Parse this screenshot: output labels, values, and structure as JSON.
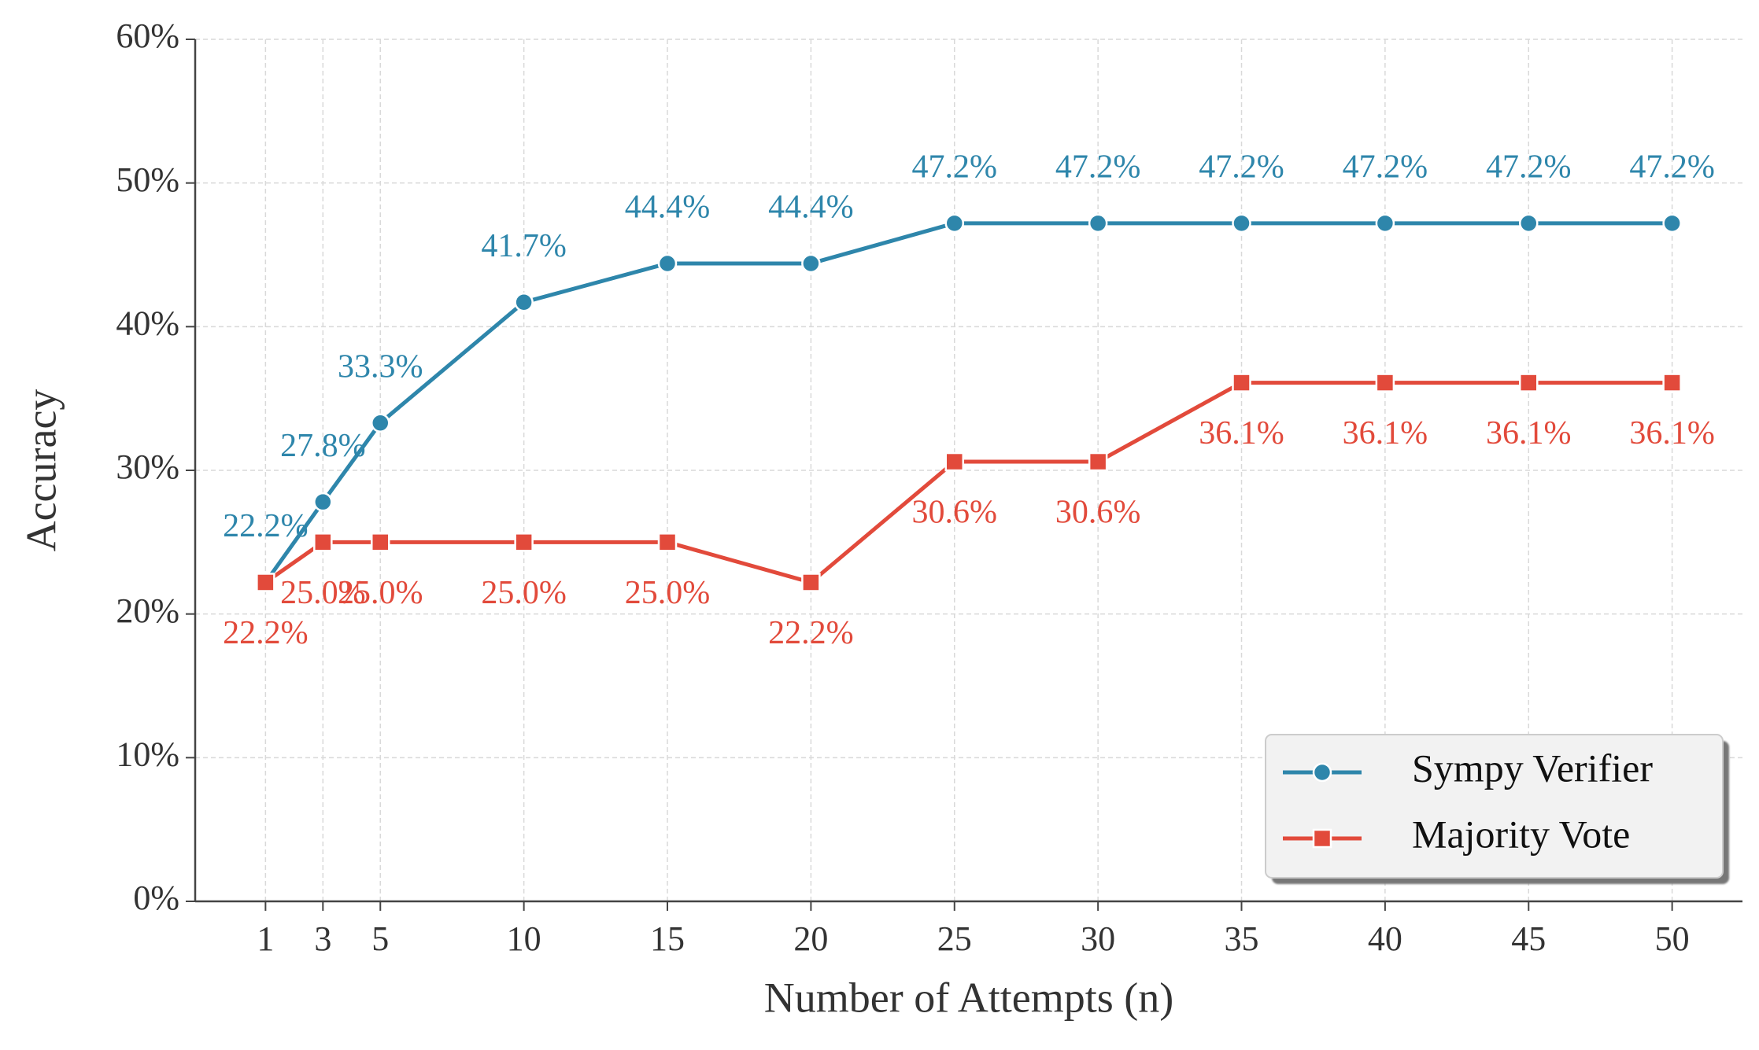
{
  "chart_data": {
    "type": "line",
    "x": [
      1,
      3,
      5,
      10,
      15,
      20,
      25,
      30,
      35,
      40,
      45,
      50
    ],
    "xlabel": "Number of Attempts (n)",
    "ylabel": "Accuracy",
    "xlim": [
      -1.45,
      52.45
    ],
    "xticks": [
      1,
      3,
      5,
      10,
      15,
      20,
      25,
      30,
      35,
      40,
      45,
      50
    ],
    "ylim": [
      0,
      60
    ],
    "yticks": [
      {
        "value": 0,
        "label": "0%"
      },
      {
        "value": 10,
        "label": "10%"
      },
      {
        "value": 20,
        "label": "20%"
      },
      {
        "value": 30,
        "label": "30%"
      },
      {
        "value": 40,
        "label": "40%"
      },
      {
        "value": 50,
        "label": "50%"
      },
      {
        "value": 60,
        "label": "60%"
      }
    ],
    "grid": true,
    "legend": "lower right",
    "series": [
      {
        "name": "Sympy Verifier",
        "color": "#2e86ab",
        "marker": "circle",
        "values": [
          22.2,
          27.8,
          33.3,
          41.7,
          44.4,
          44.4,
          47.2,
          47.2,
          47.2,
          47.2,
          47.2,
          47.2
        ],
        "value_labels": [
          "22.2%",
          "27.8%",
          "33.3%",
          "41.7%",
          "44.4%",
          "44.4%",
          "47.2%",
          "47.2%",
          "47.2%",
          "47.2%",
          "47.2%",
          "47.2%"
        ]
      },
      {
        "name": "Majority Vote",
        "color": "#e24a3b",
        "marker": "square",
        "values": [
          22.2,
          25.0,
          25.0,
          25.0,
          25.0,
          22.2,
          30.6,
          30.6,
          36.1,
          36.1,
          36.1,
          36.1
        ],
        "value_labels": [
          "22.2%",
          "25.0%",
          "25.0%",
          "25.0%",
          "25.0%",
          "22.2%",
          "30.6%",
          "30.6%",
          "36.1%",
          "36.1%",
          "36.1%",
          "36.1%"
        ]
      }
    ]
  }
}
